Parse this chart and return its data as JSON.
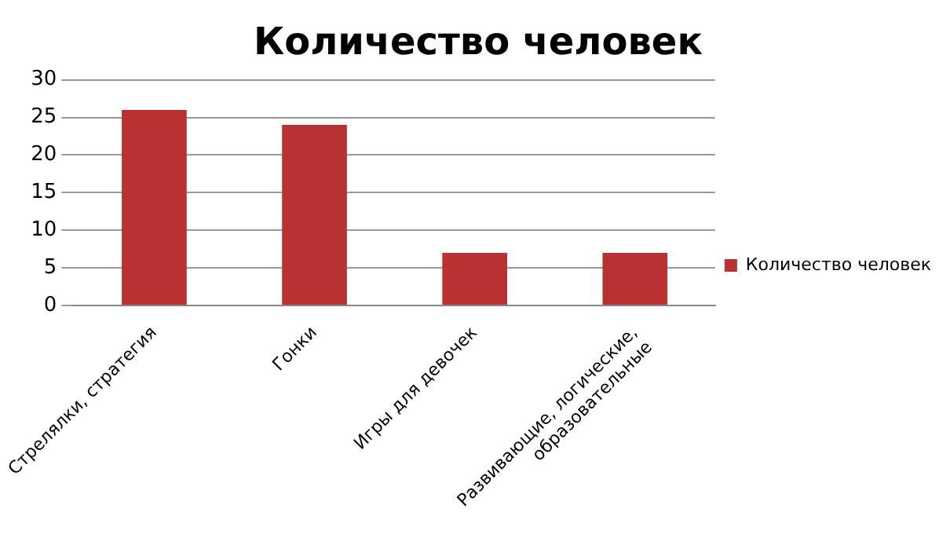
{
  "chart_data": {
    "type": "bar",
    "title": "Количество человек",
    "categories": [
      "Стрелялки, стратегия",
      "Гонки",
      "Игры для девочек",
      "Развивающие, логические, образовательные"
    ],
    "series": [
      {
        "name": "Количество человек",
        "color": "#b83232",
        "values": [
          26,
          24,
          7,
          7
        ]
      }
    ],
    "ylim": [
      0,
      30
    ],
    "yticks": [
      0,
      5,
      10,
      15,
      20,
      25,
      30
    ],
    "grid": "y",
    "legend": "right"
  }
}
